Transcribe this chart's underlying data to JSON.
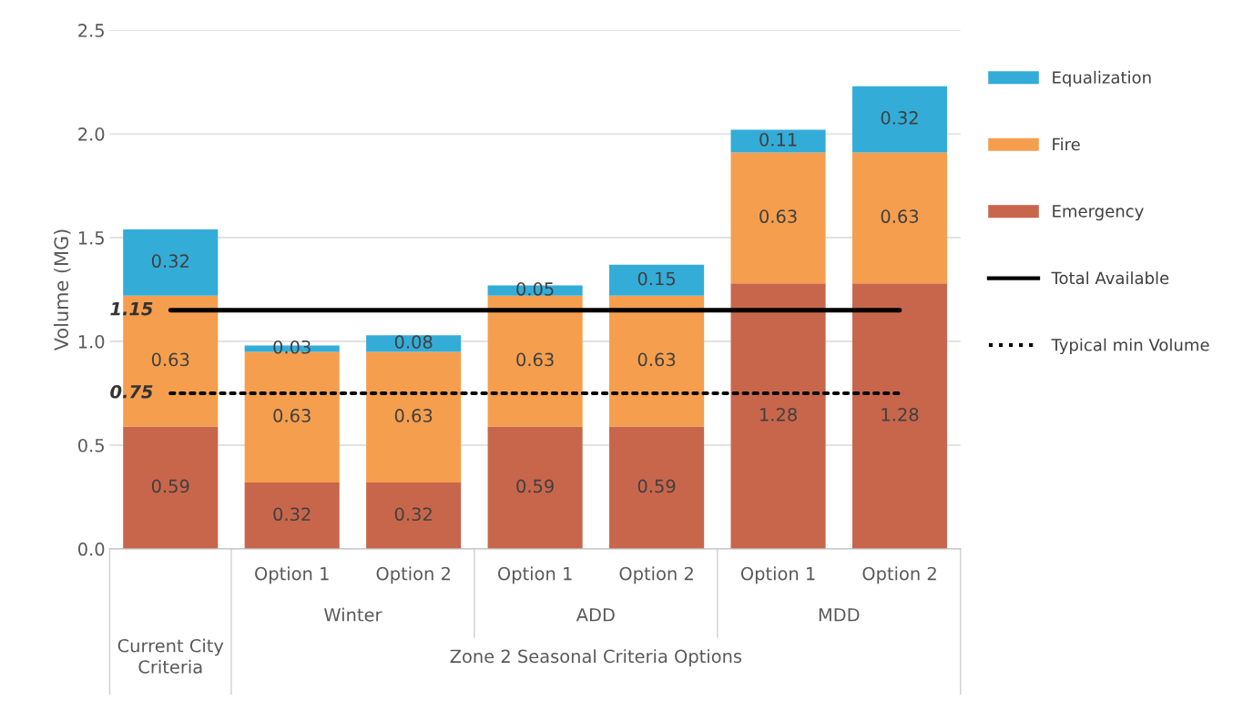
{
  "chart_data": {
    "type": "bar",
    "stacked": true,
    "ylabel": "Volume (MG)",
    "categories": [
      null,
      "Option 1",
      "Option 2",
      "Option 1",
      "Option 2",
      "Option 1",
      "Option 2"
    ],
    "series": [
      {
        "name": "Emergency",
        "color": "#c8664c",
        "values": [
          0.59,
          0.32,
          0.32,
          0.59,
          0.59,
          1.28,
          1.28
        ]
      },
      {
        "name": "Fire",
        "color": "#f59e4e",
        "values": [
          0.63,
          0.63,
          0.63,
          0.63,
          0.63,
          0.63,
          0.63
        ]
      },
      {
        "name": "Equalization",
        "color": "#34acd8",
        "values": [
          0.32,
          0.03,
          0.08,
          0.05,
          0.15,
          0.11,
          0.32
        ]
      }
    ],
    "ref_lines": [
      {
        "axis": "y",
        "value": 1.15,
        "label": "Total Available",
        "color": "#000000",
        "line_style": "solid"
      },
      {
        "axis": "y",
        "value": 0.75,
        "label": "Typical min Volume",
        "color": "#000000",
        "line_style": "dotted"
      }
    ],
    "annotations": [
      "Winter",
      "ADD",
      "MDD",
      "Current City Criteria",
      "Zone 2 Seasonal Criteria Options",
      "1.15",
      "0.75"
    ],
    "ylim": [
      0,
      2.5
    ],
    "yticks": [
      {
        "value": 0,
        "label": "0.0"
      },
      {
        "value": 0.5,
        "label": "0.5"
      },
      {
        "value": 1,
        "label": "1.0"
      },
      {
        "value": 1.5,
        "label": "1.5"
      },
      {
        "value": 2,
        "label": "2.0"
      },
      {
        "value": 2.5,
        "label": "2.5"
      }
    ],
    "grid": "y",
    "legend": "right",
    "data_labels": true
  }
}
